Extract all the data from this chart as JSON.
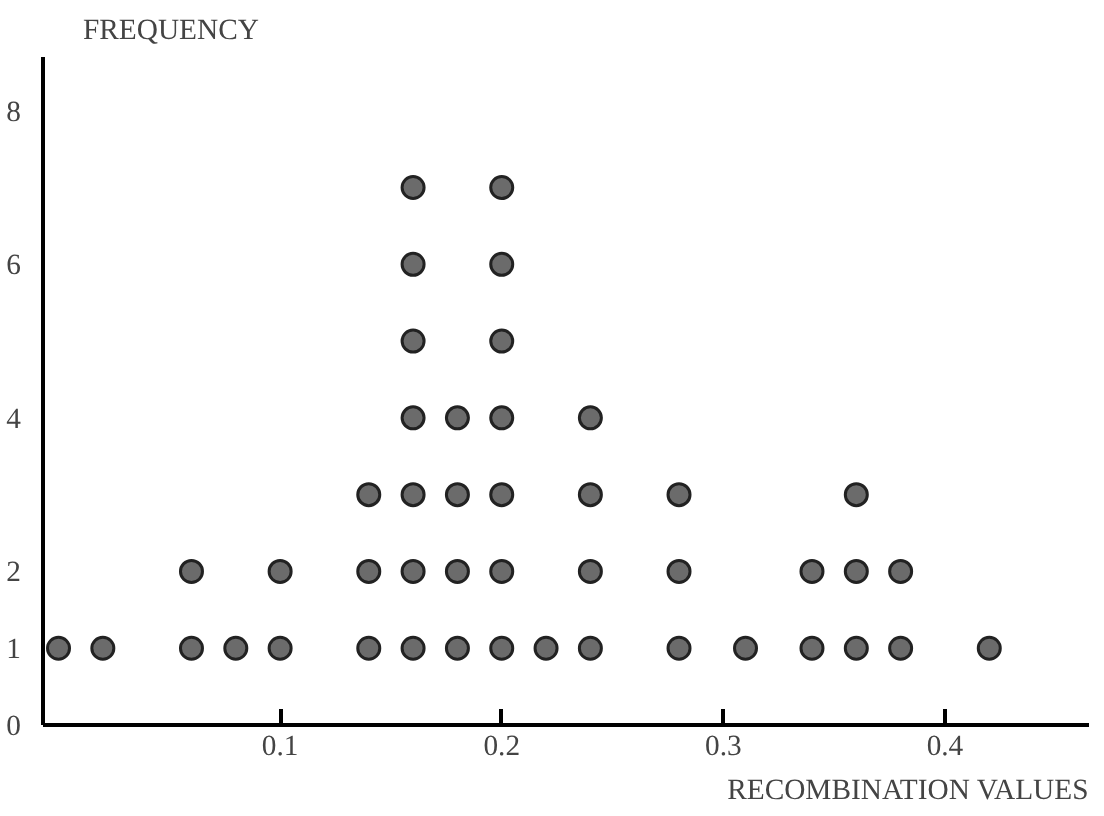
{
  "chart_data": {
    "type": "scatter",
    "xlabel": "RECOMBINATION VALUES",
    "ylabel": "FREQUENCY",
    "x": [
      0.0,
      0.02,
      0.06,
      0.06,
      0.08,
      0.1,
      0.1,
      0.14,
      0.14,
      0.14,
      0.16,
      0.16,
      0.16,
      0.16,
      0.16,
      0.16,
      0.16,
      0.18,
      0.18,
      0.18,
      0.18,
      0.2,
      0.2,
      0.2,
      0.2,
      0.2,
      0.2,
      0.2,
      0.22,
      0.24,
      0.24,
      0.24,
      0.24,
      0.28,
      0.28,
      0.28,
      0.31,
      0.34,
      0.34,
      0.36,
      0.36,
      0.36,
      0.38,
      0.38,
      0.42
    ],
    "values": [
      1,
      1,
      1,
      2,
      1,
      1,
      2,
      1,
      2,
      3,
      1,
      2,
      3,
      4,
      5,
      6,
      7,
      1,
      2,
      3,
      4,
      1,
      2,
      3,
      4,
      5,
      6,
      7,
      1,
      1,
      2,
      3,
      4,
      1,
      2,
      3,
      1,
      1,
      2,
      1,
      2,
      3,
      1,
      2,
      1
    ],
    "color": "#6b6b6b",
    "marker": "circle",
    "grid": false,
    "xlim": [
      -0.007,
      0.465
    ],
    "ylim": [
      0,
      8.7
    ],
    "xticks": [
      0.1,
      0.2,
      0.3,
      0.4
    ],
    "yticks": [
      0,
      1,
      2,
      4,
      6,
      8
    ]
  }
}
